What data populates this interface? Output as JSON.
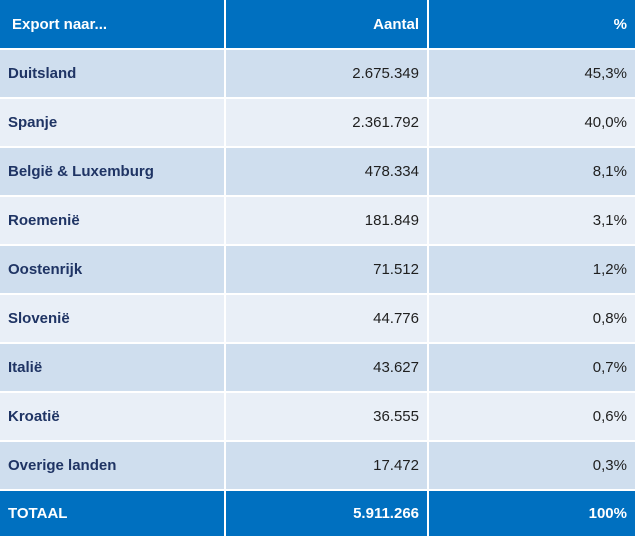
{
  "header": {
    "country": "Export naar...",
    "count": "Aantal",
    "percent": "%"
  },
  "rows": [
    {
      "country": "Duitsland",
      "count": "2.675.349",
      "percent": "45,3%"
    },
    {
      "country": "Spanje",
      "count": "2.361.792",
      "percent": "40,0%"
    },
    {
      "country": "België & Luxemburg",
      "count": "478.334",
      "percent": "8,1%"
    },
    {
      "country": "Roemenië",
      "count": "181.849",
      "percent": "3,1%"
    },
    {
      "country": "Oostenrijk",
      "count": "71.512",
      "percent": "1,2%"
    },
    {
      "country": "Slovenië",
      "count": "44.776",
      "percent": "0,8%"
    },
    {
      "country": "Italië",
      "count": "43.627",
      "percent": "0,7%"
    },
    {
      "country": "Kroatië",
      "count": "36.555",
      "percent": "0,6%"
    },
    {
      "country": "Overige landen",
      "count": "17.472",
      "percent": "0,3%"
    }
  ],
  "total": {
    "label": "TOTAAL",
    "count": "5.911.266",
    "percent": "100%"
  },
  "colors": {
    "header_bg": "#0070c0",
    "row_dark": "#cfdeee",
    "row_light": "#e9eff7",
    "country_text": "#1f3464"
  }
}
